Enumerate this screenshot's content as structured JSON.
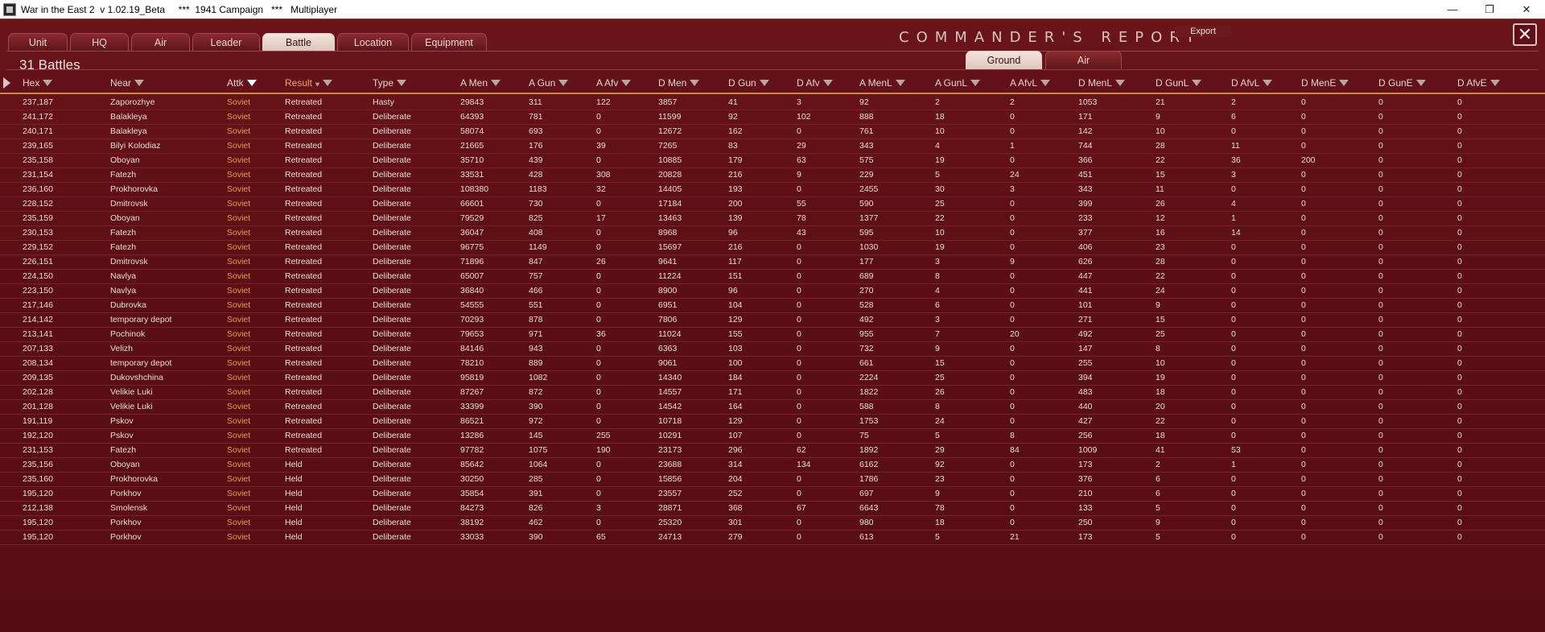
{
  "window": {
    "title": "War in the East 2  v 1.02.19_Beta     ***  1941 Campaign   ***   Multiplayer",
    "minimize_glyph": "—",
    "maximize_glyph": "❐",
    "close_glyph": "✕"
  },
  "report": {
    "title": "COMMANDER'S REPORT",
    "export_label": "Export",
    "close_glyph": "✕",
    "battle_count": "31 Battles"
  },
  "tabs": [
    {
      "label": "Unit",
      "active": false
    },
    {
      "label": "HQ",
      "active": false
    },
    {
      "label": "Air",
      "active": false
    },
    {
      "label": "Leader",
      "active": false
    },
    {
      "label": "Battle",
      "active": true
    },
    {
      "label": "Location",
      "active": false
    },
    {
      "label": "Equipment",
      "active": false
    }
  ],
  "subtabs": [
    {
      "label": "Ground",
      "active": true
    },
    {
      "label": "Air",
      "active": false
    }
  ],
  "columns": [
    {
      "key": "hex",
      "label": "Hex"
    },
    {
      "key": "near",
      "label": "Near"
    },
    {
      "key": "attk",
      "label": "Attk"
    },
    {
      "key": "result",
      "label": "Result"
    },
    {
      "key": "type",
      "label": "Type"
    },
    {
      "key": "a_men",
      "label": "A Men"
    },
    {
      "key": "a_gun",
      "label": "A Gun"
    },
    {
      "key": "a_afv",
      "label": "A Afv"
    },
    {
      "key": "d_men",
      "label": "D Men"
    },
    {
      "key": "d_gun",
      "label": "D Gun"
    },
    {
      "key": "d_afv",
      "label": "D Afv"
    },
    {
      "key": "a_menl",
      "label": "A MenL"
    },
    {
      "key": "a_gunl",
      "label": "A GunL"
    },
    {
      "key": "a_afvl",
      "label": "A AfvL"
    },
    {
      "key": "d_menl",
      "label": "D MenL"
    },
    {
      "key": "d_gunl",
      "label": "D GunL"
    },
    {
      "key": "d_afvl",
      "label": "D AfvL"
    },
    {
      "key": "d_mene",
      "label": "D MenE"
    },
    {
      "key": "d_gune",
      "label": "D GunE"
    },
    {
      "key": "d_afve",
      "label": "D AfvE"
    }
  ],
  "rows": [
    [
      "237,187",
      "Zaporozhye",
      "Soviet",
      "Retreated",
      "Hasty",
      "29843",
      "311",
      "122",
      "3857",
      "41",
      "3",
      "92",
      "2",
      "2",
      "1053",
      "21",
      "2",
      "0",
      "0",
      "0"
    ],
    [
      "241,172",
      "Balakleya",
      "Soviet",
      "Retreated",
      "Deliberate",
      "64393",
      "781",
      "0",
      "11599",
      "92",
      "102",
      "888",
      "18",
      "0",
      "171",
      "9",
      "6",
      "0",
      "0",
      "0"
    ],
    [
      "240,171",
      "Balakleya",
      "Soviet",
      "Retreated",
      "Deliberate",
      "58074",
      "693",
      "0",
      "12672",
      "162",
      "0",
      "761",
      "10",
      "0",
      "142",
      "10",
      "0",
      "0",
      "0",
      "0"
    ],
    [
      "239,165",
      "Bilyi Kolodiaz",
      "Soviet",
      "Retreated",
      "Deliberate",
      "21665",
      "176",
      "39",
      "7265",
      "83",
      "29",
      "343",
      "4",
      "1",
      "744",
      "28",
      "11",
      "0",
      "0",
      "0"
    ],
    [
      "235,158",
      "Oboyan",
      "Soviet",
      "Retreated",
      "Deliberate",
      "35710",
      "439",
      "0",
      "10885",
      "179",
      "63",
      "575",
      "19",
      "0",
      "366",
      "22",
      "36",
      "200",
      "0",
      "0"
    ],
    [
      "231,154",
      "Fatezh",
      "Soviet",
      "Retreated",
      "Deliberate",
      "33531",
      "428",
      "308",
      "20828",
      "216",
      "9",
      "229",
      "5",
      "24",
      "451",
      "15",
      "3",
      "0",
      "0",
      "0"
    ],
    [
      "236,160",
      "Prokhorovka",
      "Soviet",
      "Retreated",
      "Deliberate",
      "108380",
      "1183",
      "32",
      "14405",
      "193",
      "0",
      "2455",
      "30",
      "3",
      "343",
      "11",
      "0",
      "0",
      "0",
      "0"
    ],
    [
      "228,152",
      "Dmitrovsk",
      "Soviet",
      "Retreated",
      "Deliberate",
      "66601",
      "730",
      "0",
      "17184",
      "200",
      "55",
      "590",
      "25",
      "0",
      "399",
      "26",
      "4",
      "0",
      "0",
      "0"
    ],
    [
      "235,159",
      "Oboyan",
      "Soviet",
      "Retreated",
      "Deliberate",
      "79529",
      "825",
      "17",
      "13463",
      "139",
      "78",
      "1377",
      "22",
      "0",
      "233",
      "12",
      "1",
      "0",
      "0",
      "0"
    ],
    [
      "230,153",
      "Fatezh",
      "Soviet",
      "Retreated",
      "Deliberate",
      "36047",
      "408",
      "0",
      "8968",
      "96",
      "43",
      "595",
      "10",
      "0",
      "377",
      "16",
      "14",
      "0",
      "0",
      "0"
    ],
    [
      "229,152",
      "Fatezh",
      "Soviet",
      "Retreated",
      "Deliberate",
      "96775",
      "1149",
      "0",
      "15697",
      "216",
      "0",
      "1030",
      "19",
      "0",
      "406",
      "23",
      "0",
      "0",
      "0",
      "0"
    ],
    [
      "226,151",
      "Dmitrovsk",
      "Soviet",
      "Retreated",
      "Deliberate",
      "71896",
      "847",
      "26",
      "9641",
      "117",
      "0",
      "177",
      "3",
      "9",
      "626",
      "28",
      "0",
      "0",
      "0",
      "0"
    ],
    [
      "224,150",
      "Navlya",
      "Soviet",
      "Retreated",
      "Deliberate",
      "65007",
      "757",
      "0",
      "11224",
      "151",
      "0",
      "689",
      "8",
      "0",
      "447",
      "22",
      "0",
      "0",
      "0",
      "0"
    ],
    [
      "223,150",
      "Navlya",
      "Soviet",
      "Retreated",
      "Deliberate",
      "36840",
      "466",
      "0",
      "8900",
      "96",
      "0",
      "270",
      "4",
      "0",
      "441",
      "24",
      "0",
      "0",
      "0",
      "0"
    ],
    [
      "217,146",
      "Dubrovka",
      "Soviet",
      "Retreated",
      "Deliberate",
      "54555",
      "551",
      "0",
      "6951",
      "104",
      "0",
      "528",
      "6",
      "0",
      "101",
      "9",
      "0",
      "0",
      "0",
      "0"
    ],
    [
      "214,142",
      "temporary depot",
      "Soviet",
      "Retreated",
      "Deliberate",
      "70293",
      "878",
      "0",
      "7806",
      "129",
      "0",
      "492",
      "3",
      "0",
      "271",
      "15",
      "0",
      "0",
      "0",
      "0"
    ],
    [
      "213,141",
      "Pochinok",
      "Soviet",
      "Retreated",
      "Deliberate",
      "79653",
      "971",
      "36",
      "11024",
      "155",
      "0",
      "955",
      "7",
      "20",
      "492",
      "25",
      "0",
      "0",
      "0",
      "0"
    ],
    [
      "207,133",
      "Velizh",
      "Soviet",
      "Retreated",
      "Deliberate",
      "84146",
      "943",
      "0",
      "6363",
      "103",
      "0",
      "732",
      "9",
      "0",
      "147",
      "8",
      "0",
      "0",
      "0",
      "0"
    ],
    [
      "208,134",
      "temporary depot",
      "Soviet",
      "Retreated",
      "Deliberate",
      "78210",
      "889",
      "0",
      "9061",
      "100",
      "0",
      "661",
      "15",
      "0",
      "255",
      "10",
      "0",
      "0",
      "0",
      "0"
    ],
    [
      "209,135",
      "Dukovshchina",
      "Soviet",
      "Retreated",
      "Deliberate",
      "95819",
      "1082",
      "0",
      "14340",
      "184",
      "0",
      "2224",
      "25",
      "0",
      "394",
      "19",
      "0",
      "0",
      "0",
      "0"
    ],
    [
      "202,128",
      "Velikie Luki",
      "Soviet",
      "Retreated",
      "Deliberate",
      "87267",
      "872",
      "0",
      "14557",
      "171",
      "0",
      "1822",
      "26",
      "0",
      "483",
      "18",
      "0",
      "0",
      "0",
      "0"
    ],
    [
      "201,128",
      "Velikie Luki",
      "Soviet",
      "Retreated",
      "Deliberate",
      "33399",
      "390",
      "0",
      "14542",
      "164",
      "0",
      "588",
      "8",
      "0",
      "440",
      "20",
      "0",
      "0",
      "0",
      "0"
    ],
    [
      "191,119",
      "Pskov",
      "Soviet",
      "Retreated",
      "Deliberate",
      "86521",
      "972",
      "0",
      "10718",
      "129",
      "0",
      "1753",
      "24",
      "0",
      "427",
      "22",
      "0",
      "0",
      "0",
      "0"
    ],
    [
      "192,120",
      "Pskov",
      "Soviet",
      "Retreated",
      "Deliberate",
      "13286",
      "145",
      "255",
      "10291",
      "107",
      "0",
      "75",
      "5",
      "8",
      "256",
      "18",
      "0",
      "0",
      "0",
      "0"
    ],
    [
      "231,153",
      "Fatezh",
      "Soviet",
      "Retreated",
      "Deliberate",
      "97782",
      "1075",
      "190",
      "23173",
      "296",
      "62",
      "1892",
      "29",
      "84",
      "1009",
      "41",
      "53",
      "0",
      "0",
      "0"
    ],
    [
      "235,156",
      "Oboyan",
      "Soviet",
      "Held",
      "Deliberate",
      "85642",
      "1064",
      "0",
      "23688",
      "314",
      "134",
      "6162",
      "92",
      "0",
      "173",
      "2",
      "1",
      "0",
      "0",
      "0"
    ],
    [
      "235,160",
      "Prokhorovka",
      "Soviet",
      "Held",
      "Deliberate",
      "30250",
      "285",
      "0",
      "15856",
      "204",
      "0",
      "1786",
      "23",
      "0",
      "376",
      "6",
      "0",
      "0",
      "0",
      "0"
    ],
    [
      "195,120",
      "Porkhov",
      "Soviet",
      "Held",
      "Deliberate",
      "35854",
      "391",
      "0",
      "23557",
      "252",
      "0",
      "697",
      "9",
      "0",
      "210",
      "6",
      "0",
      "0",
      "0",
      "0"
    ],
    [
      "212,138",
      "Smolensk",
      "Soviet",
      "Held",
      "Deliberate",
      "84273",
      "826",
      "3",
      "28871",
      "368",
      "67",
      "6643",
      "78",
      "0",
      "133",
      "5",
      "0",
      "0",
      "0",
      "0"
    ],
    [
      "195,120",
      "Porkhov",
      "Soviet",
      "Held",
      "Deliberate",
      "38192",
      "462",
      "0",
      "25320",
      "301",
      "0",
      "980",
      "18",
      "0",
      "250",
      "9",
      "0",
      "0",
      "0",
      "0"
    ],
    [
      "195,120",
      "Porkhov",
      "Soviet",
      "Held",
      "Deliberate",
      "33033",
      "390",
      "65",
      "24713",
      "279",
      "0",
      "613",
      "5",
      "21",
      "173",
      "5",
      "0",
      "0",
      "0",
      "0"
    ]
  ]
}
